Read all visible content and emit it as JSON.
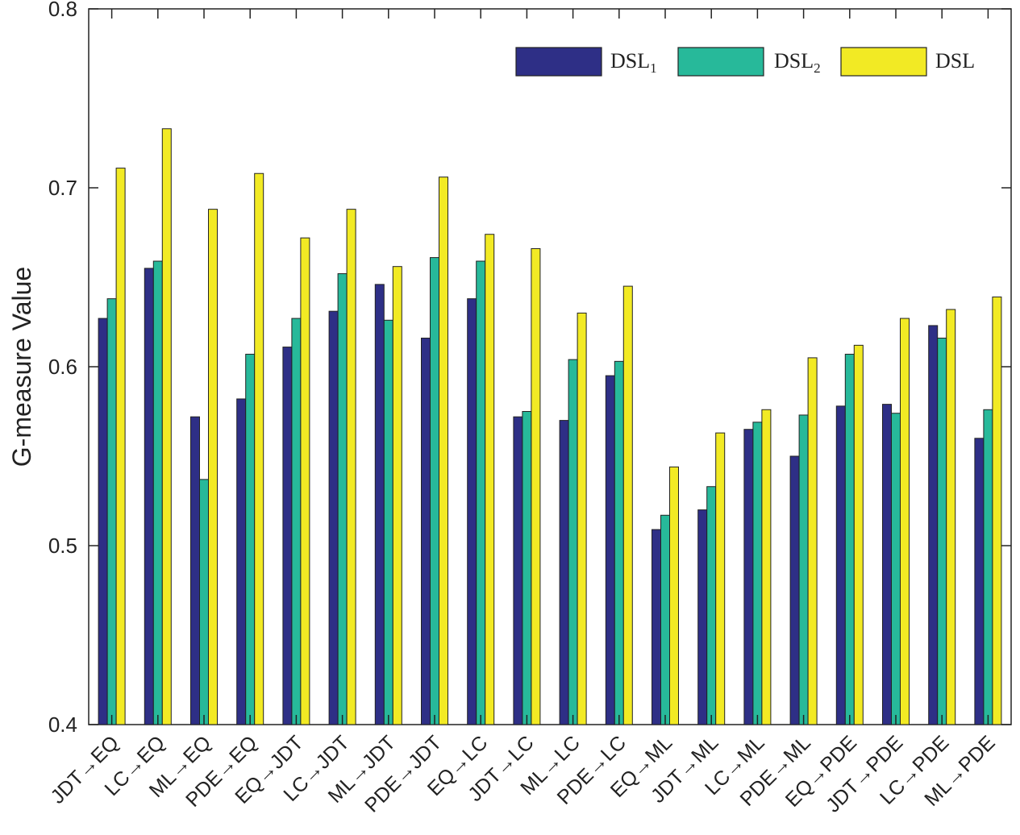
{
  "chart_data": {
    "type": "bar",
    "title": "",
    "xlabel": "",
    "ylabel": "G-measure Value",
    "ylim": [
      0.4,
      0.8
    ],
    "yticks": [
      0.4,
      0.5,
      0.6,
      0.7,
      0.8
    ],
    "ytick_labels": [
      "0.4",
      "0.5",
      "0.6",
      "0.7",
      "0.8"
    ],
    "grid": false,
    "legend_position": "top-right",
    "categories": [
      "JDT→EQ",
      "LC→EQ",
      "ML→EQ",
      "PDE→EQ",
      "EQ→JDT",
      "LC→JDT",
      "ML→JDT",
      "PDE→JDT",
      "EQ→LC",
      "JDT→LC",
      "ML→LC",
      "PDE→LC",
      "EQ→ML",
      "JDT→ML",
      "LC→ML",
      "PDE→ML",
      "EQ→PDE",
      "JDT→PDE",
      "LC→PDE",
      "ML→PDE"
    ],
    "series": [
      {
        "name": "DSL1",
        "legend_base": "DSL",
        "legend_sub": "1",
        "color": "#2e2f86",
        "values": [
          0.627,
          0.655,
          0.572,
          0.582,
          0.611,
          0.631,
          0.646,
          0.616,
          0.638,
          0.572,
          0.57,
          0.595,
          0.509,
          0.52,
          0.565,
          0.55,
          0.578,
          0.579,
          0.623,
          0.56
        ]
      },
      {
        "name": "DSL2",
        "legend_base": "DSL",
        "legend_sub": "2",
        "color": "#27b99a",
        "values": [
          0.638,
          0.659,
          0.537,
          0.607,
          0.627,
          0.652,
          0.626,
          0.661,
          0.659,
          0.575,
          0.604,
          0.603,
          0.517,
          0.533,
          0.569,
          0.573,
          0.607,
          0.574,
          0.616,
          0.576
        ]
      },
      {
        "name": "DSL",
        "legend_base": "DSL",
        "legend_sub": "",
        "color": "#f2ea24",
        "values": [
          0.711,
          0.733,
          0.688,
          0.708,
          0.672,
          0.688,
          0.656,
          0.706,
          0.674,
          0.666,
          0.63,
          0.645,
          0.544,
          0.563,
          0.576,
          0.605,
          0.612,
          0.627,
          0.632,
          0.639
        ]
      }
    ]
  }
}
